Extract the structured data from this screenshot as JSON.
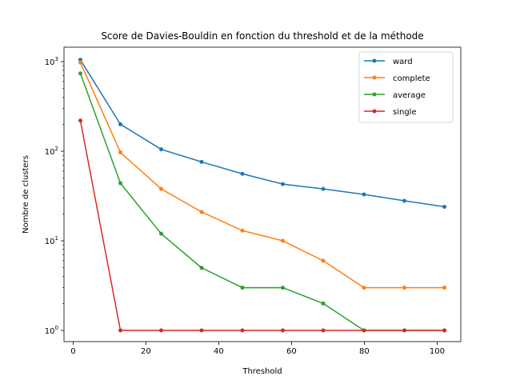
{
  "chart_data": {
    "type": "line",
    "title": "Score de Davies-Bouldin en fonction du threshold et de la méthode",
    "xlabel": "Threshold",
    "ylabel": "Nombre de clusters",
    "xlim": [
      -2.5,
      106.5
    ],
    "ylim": [
      0.75,
      1450
    ],
    "yscale": "log",
    "xticks": [
      0,
      20,
      40,
      60,
      80,
      100
    ],
    "xtick_labels": [
      "0",
      "20",
      "40",
      "60",
      "80",
      "100"
    ],
    "yticks": [
      1,
      10,
      100,
      1000
    ],
    "ytick_labels": [
      [
        "10",
        "0"
      ],
      [
        "10",
        "1"
      ],
      [
        "10",
        "2"
      ],
      [
        "10",
        "3"
      ]
    ],
    "legend_position": "top-right",
    "grid": false,
    "x": [
      2,
      13,
      24.2,
      35.3,
      46.5,
      57.6,
      68.7,
      79.9,
      91,
      102
    ],
    "series": [
      {
        "name": "ward",
        "color": "#1f77b4",
        "values": [
          1050,
          200,
          105,
          76,
          56,
          43,
          38,
          33,
          28,
          24
        ]
      },
      {
        "name": "complete",
        "color": "#ff7f0e",
        "values": [
          980,
          97,
          38,
          21,
          13,
          10,
          6,
          3,
          3,
          3
        ]
      },
      {
        "name": "average",
        "color": "#2ca02c",
        "values": [
          740,
          44,
          12,
          5,
          3,
          3,
          2,
          1,
          1,
          1
        ]
      },
      {
        "name": "single",
        "color": "#d62728",
        "values": [
          220,
          1,
          1,
          1,
          1,
          1,
          1,
          1,
          1,
          1
        ]
      }
    ]
  }
}
